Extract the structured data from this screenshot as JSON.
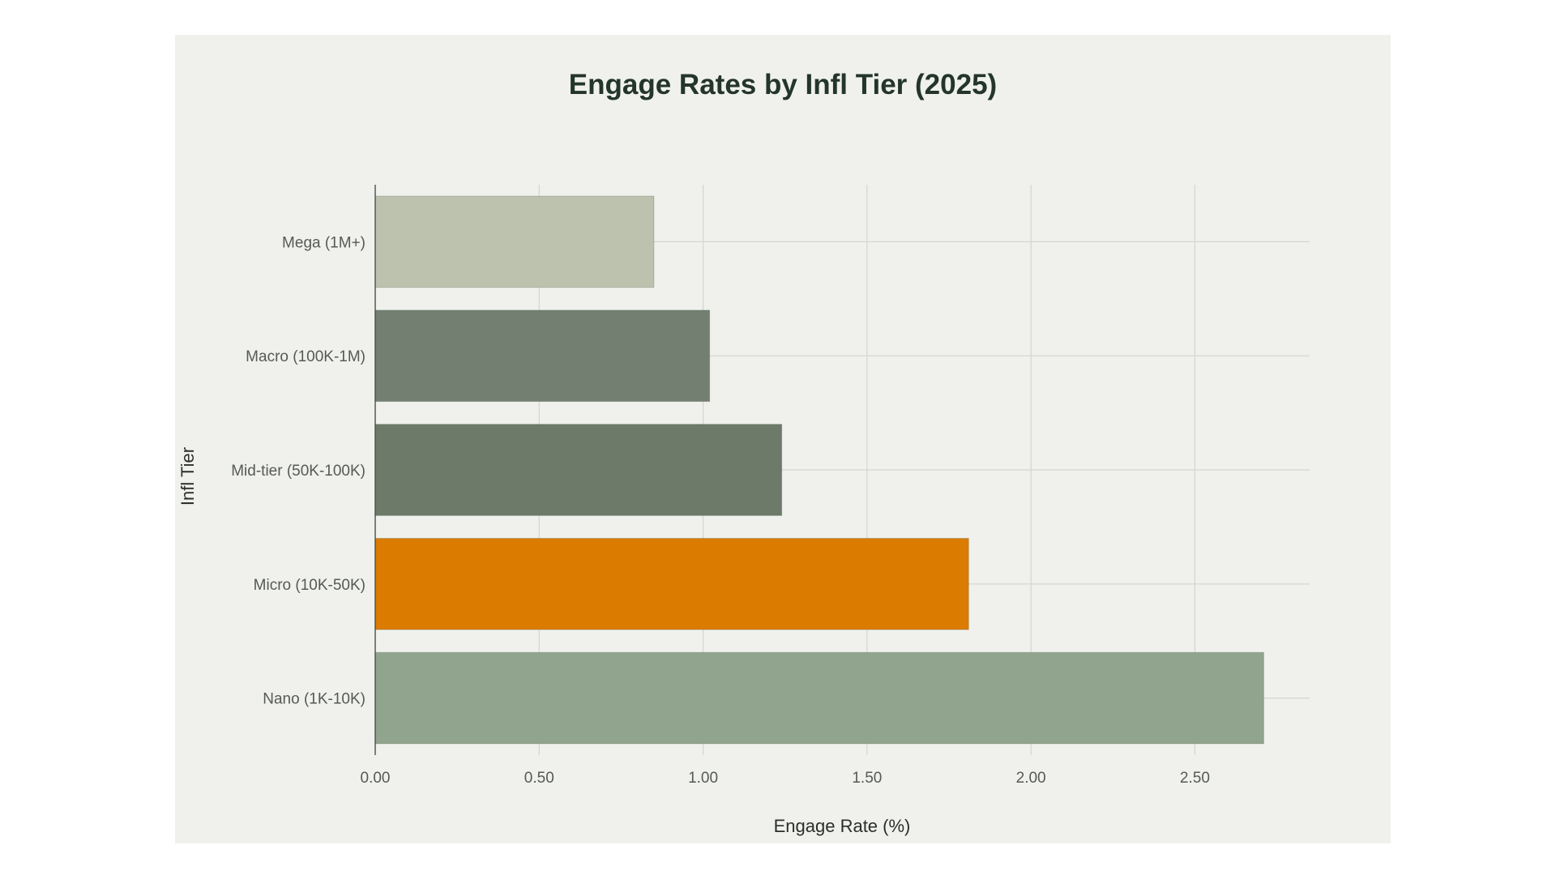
{
  "chart_data": {
    "type": "bar",
    "orientation": "horizontal",
    "title": "Engage Rates by Infl Tier (2025)",
    "xlabel": "Engage Rate (%)",
    "ylabel": "Infl Tier",
    "xlim": [
      0,
      2.85
    ],
    "xticks": [
      "0.00",
      "0.50",
      "1.00",
      "1.50",
      "2.00",
      "2.50"
    ],
    "xtick_values": [
      0,
      0.5,
      1.0,
      1.5,
      2.0,
      2.5
    ],
    "grid": true,
    "categories": [
      "Mega (1M+)",
      "Macro (100K-1M)",
      "Mid-tier (50K-100K)",
      "Micro (10K-50K)",
      "Nano (1K-10K)"
    ],
    "values": [
      0.85,
      1.02,
      1.24,
      1.81,
      2.71
    ],
    "colors": [
      "#bcc2ad",
      "#727f71",
      "#6d7a69",
      "#db7c00",
      "#91a48e"
    ]
  },
  "colors": {
    "panel_background": "#f0f1ed",
    "title": "#24352b",
    "highlight": "#db7c00"
  }
}
